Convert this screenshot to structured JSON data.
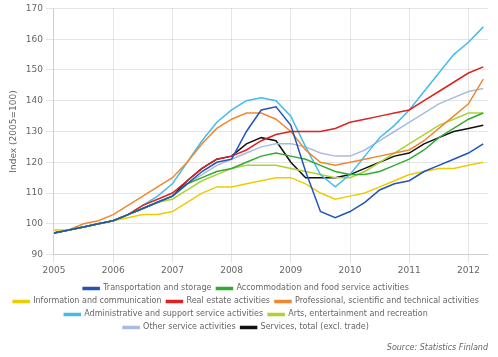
{
  "chart_data": {
    "type": "line",
    "y_label": "Index (2005=100)",
    "annotations": [
      "Source: Statistics Finland"
    ],
    "x": [
      2005.0,
      2005.25,
      2005.5,
      2005.75,
      2006.0,
      2006.25,
      2006.5,
      2006.75,
      2007.0,
      2007.25,
      2007.5,
      2007.75,
      2008.0,
      2008.25,
      2008.5,
      2008.75,
      2009.0,
      2009.25,
      2009.5,
      2009.75,
      2010.0,
      2010.25,
      2010.5,
      2010.75,
      2011.0,
      2011.25,
      2011.5,
      2011.75,
      2012.0,
      2012.25
    ],
    "xlim": [
      2005.0,
      2012.33
    ],
    "xticks": [
      2005,
      2006,
      2007,
      2008,
      2009,
      2010,
      2011,
      2012
    ],
    "ylim": [
      90,
      170
    ],
    "yticks": [
      90,
      100,
      110,
      120,
      130,
      140,
      150,
      160,
      170
    ],
    "grid": true,
    "legend": "bottom",
    "series": [
      {
        "name": "Transportation and storage",
        "color": "#2255bb",
        "values": [
          97,
          98,
          99,
          100,
          101,
          103,
          105,
          107,
          109,
          113,
          117,
          120,
          121,
          130,
          137,
          138,
          132,
          117,
          104,
          102,
          104,
          107,
          111,
          113,
          114,
          117,
          119,
          121,
          123,
          126
        ]
      },
      {
        "name": "Accommodation and food service activities",
        "color": "#33aa33",
        "values": [
          97,
          98,
          99,
          100,
          101,
          103,
          105,
          107,
          109,
          113,
          115,
          117,
          118,
          120,
          122,
          123,
          122,
          121,
          119,
          117,
          116,
          116,
          117,
          119,
          121,
          124,
          128,
          131,
          134,
          136
        ]
      },
      {
        "name": "Information and communication",
        "color": "#eecc00",
        "values": [
          98,
          98,
          99,
          100,
          101,
          102,
          103,
          103,
          104,
          107,
          110,
          112,
          112,
          113,
          114,
          115,
          115,
          113,
          110,
          108,
          109,
          110,
          112,
          114,
          116,
          117,
          118,
          118,
          119,
          120
        ]
      },
      {
        "name": "Real estate activities",
        "color": "#dd2222",
        "values": [
          97,
          98,
          99,
          100,
          101,
          103,
          106,
          108,
          110,
          114,
          118,
          121,
          122,
          124,
          127,
          129,
          130,
          130,
          130,
          131,
          133,
          134,
          135,
          136,
          137,
          140,
          143,
          146,
          149,
          151
        ]
      },
      {
        "name": "Professional, scientific and technical activities",
        "color": "#ee8833",
        "values": [
          97,
          98,
          100,
          101,
          103,
          106,
          109,
          112,
          115,
          120,
          126,
          131,
          134,
          136,
          136,
          134,
          130,
          124,
          120,
          119,
          120,
          121,
          122,
          123,
          124,
          127,
          131,
          135,
          139,
          147
        ]
      },
      {
        "name": "Administrative and support service activities",
        "color": "#44bbee",
        "values": [
          97,
          98,
          99,
          100,
          101,
          103,
          106,
          109,
          113,
          120,
          127,
          133,
          137,
          140,
          141,
          140,
          135,
          125,
          116,
          112,
          116,
          122,
          128,
          132,
          137,
          143,
          149,
          155,
          159,
          164
        ]
      },
      {
        "name": "Arts, entertainment and recreation",
        "color": "#aad433",
        "values": [
          97,
          98,
          99,
          100,
          101,
          103,
          105,
          107,
          108,
          111,
          114,
          116,
          118,
          119,
          119,
          119,
          118,
          117,
          116,
          115,
          115,
          117,
          120,
          123,
          126,
          129,
          132,
          134,
          136,
          136
        ]
      },
      {
        "name": "Other service activities",
        "color": "#aabbdd",
        "values": [
          97,
          98,
          99,
          100,
          101,
          103,
          105,
          107,
          109,
          113,
          116,
          119,
          121,
          123,
          125,
          126,
          126,
          125,
          123,
          122,
          122,
          124,
          127,
          130,
          133,
          136,
          139,
          141,
          143,
          144
        ]
      },
      {
        "name": "Services, total (excl. trade)",
        "color": "#111111",
        "values": [
          97,
          98,
          99,
          100,
          101,
          103,
          105,
          107,
          109,
          114,
          118,
          121,
          122,
          126,
          128,
          127,
          120,
          115,
          115,
          115,
          116,
          118,
          120,
          122,
          123,
          126,
          128,
          130,
          131,
          132
        ]
      }
    ]
  }
}
